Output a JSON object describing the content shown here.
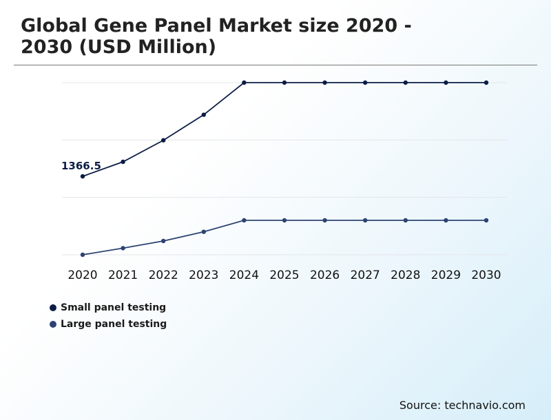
{
  "title": "Global Gene Panel Market size 2020 - 2030 (USD Million)",
  "source": "Source: technavio.com",
  "colors": {
    "series1": "#0b1d45",
    "series2": "#2c4372",
    "grid": "#e3e6ea"
  },
  "chart_data": {
    "type": "line",
    "title": "Global Gene Panel Market size 2020 - 2030 (USD Million)",
    "xlabel": "",
    "ylabel": "",
    "categories": [
      "2020",
      "2021",
      "2022",
      "2023",
      "2024",
      "2025",
      "2026",
      "2027",
      "2028",
      "2029",
      "2030"
    ],
    "ylim": [
      0,
      3000
    ],
    "grid": true,
    "legend_position": "bottom-left",
    "series": [
      {
        "name": "Small panel testing",
        "color": "#0b1d45",
        "values": [
          1366.5,
          1620,
          1995,
          2440,
          3000,
          3000,
          3000,
          3000,
          3000,
          3000,
          3000
        ]
      },
      {
        "name": "Large panel testing",
        "color": "#2c4372",
        "values": [
          0,
          115,
          240,
          400,
          600,
          600,
          600,
          600,
          600,
          600,
          600
        ]
      }
    ],
    "annotations": [
      {
        "series": 0,
        "index": 0,
        "label": "1366.5"
      }
    ]
  }
}
